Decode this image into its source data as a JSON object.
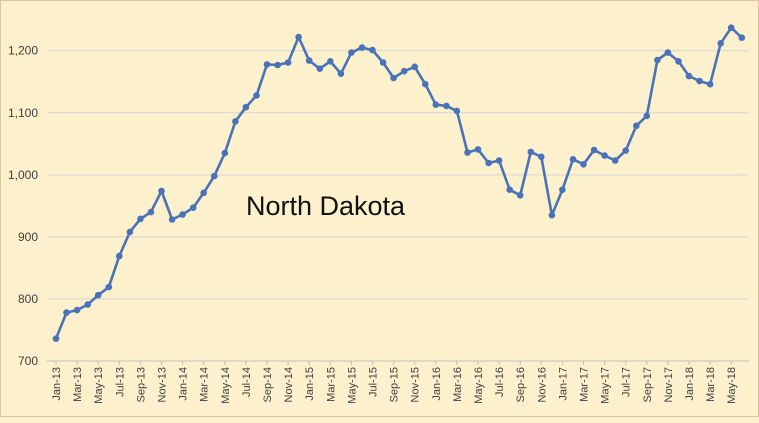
{
  "chart_data": {
    "type": "line",
    "title": "",
    "xlabel": "",
    "ylabel": "",
    "ylim": [
      700,
      1250
    ],
    "yticks": [
      700,
      800,
      900,
      1000,
      1100,
      1200
    ],
    "ytick_labels": [
      "700",
      "800",
      "900",
      "1,000",
      "1,100",
      "1,200"
    ],
    "grid": true,
    "annotation": "North Dakota",
    "color": "#4a72b8",
    "x": [
      "Jan-13",
      "Feb-13",
      "Mar-13",
      "Apr-13",
      "May-13",
      "Jun-13",
      "Jul-13",
      "Aug-13",
      "Sep-13",
      "Oct-13",
      "Nov-13",
      "Dec-13",
      "Jan-14",
      "Feb-14",
      "Mar-14",
      "Apr-14",
      "May-14",
      "Jun-14",
      "Jul-14",
      "Aug-14",
      "Sep-14",
      "Oct-14",
      "Nov-14",
      "Dec-14",
      "Jan-15",
      "Feb-15",
      "Mar-15",
      "Apr-15",
      "May-15",
      "Jun-15",
      "Jul-15",
      "Aug-15",
      "Sep-15",
      "Oct-15",
      "Nov-15",
      "Dec-15",
      "Jan-16",
      "Feb-16",
      "Mar-16",
      "Apr-16",
      "May-16",
      "Jun-16",
      "Jul-16",
      "Aug-16",
      "Sep-16",
      "Oct-16",
      "Nov-16",
      "Dec-16",
      "Jan-17",
      "Feb-17",
      "Mar-17",
      "Apr-17",
      "May-17",
      "Jun-17",
      "Jul-17",
      "Aug-17",
      "Sep-17",
      "Oct-17",
      "Nov-17",
      "Dec-17",
      "Jan-18",
      "Feb-18",
      "Mar-18",
      "Apr-18",
      "May-18",
      "Jun-18"
    ],
    "xtick_labels": [
      "Jan-13",
      "Mar-13",
      "May-13",
      "Jul-13",
      "Sep-13",
      "Nov-13",
      "Jan-14",
      "Mar-14",
      "May-14",
      "Jul-14",
      "Sep-14",
      "Nov-14",
      "Jan-15",
      "Mar-15",
      "May-15",
      "Jul-15",
      "Sep-15",
      "Nov-15",
      "Jan-16",
      "Mar-16",
      "May-16",
      "Jul-16",
      "Sep-16",
      "Nov-16",
      "Jan-17",
      "Mar-17",
      "May-17",
      "Jul-17",
      "Sep-17",
      "Nov-17",
      "Jan-18",
      "Mar-18",
      "May-18"
    ],
    "values": [
      736,
      778,
      782,
      791,
      806,
      819,
      869,
      908,
      929,
      940,
      974,
      928,
      936,
      947,
      971,
      998,
      1035,
      1086,
      1109,
      1128,
      1178,
      1177,
      1181,
      1222,
      1184,
      1171,
      1183,
      1163,
      1197,
      1205,
      1201,
      1181,
      1156,
      1167,
      1174,
      1146,
      1113,
      1111,
      1103,
      1036,
      1041,
      1019,
      1023,
      976,
      967,
      1037,
      1029,
      935,
      976,
      1025,
      1017,
      1040,
      1031,
      1023,
      1039,
      1079,
      1095,
      1185,
      1197,
      1183,
      1159,
      1151,
      1146,
      1212,
      1237,
      1221
    ]
  }
}
